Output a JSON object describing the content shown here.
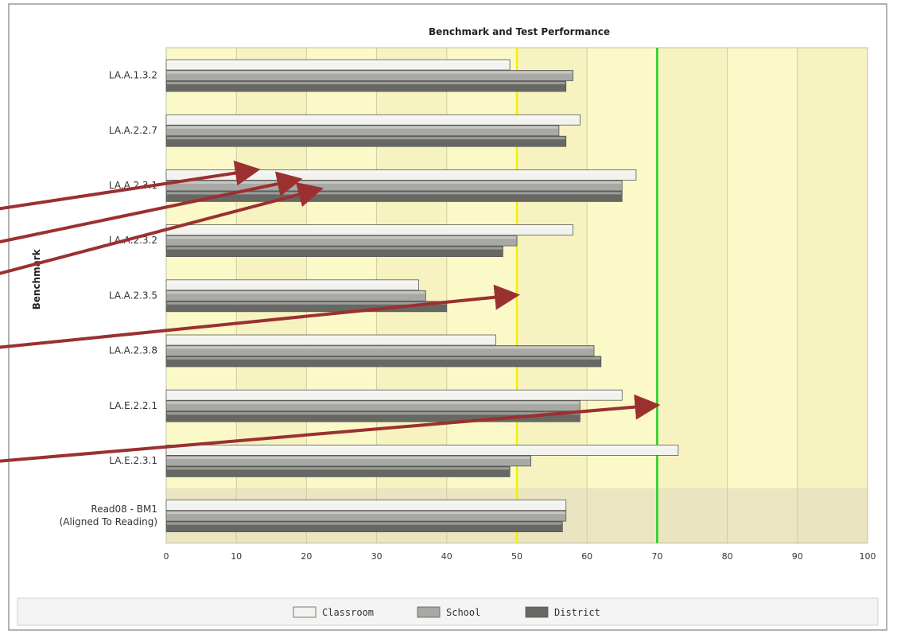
{
  "chart_data": {
    "type": "bar",
    "orientation": "horizontal",
    "title": "Benchmark and Test Performance",
    "ylabel": "Benchmark",
    "xlabel": "",
    "xlim": [
      0,
      100
    ],
    "xticks": [
      "0",
      "10",
      "20",
      "30",
      "40",
      "50",
      "60",
      "70",
      "80",
      "90",
      "100"
    ],
    "categories": [
      [
        "LA.A.1.3.2"
      ],
      [
        "LA.A.2.2.7"
      ],
      [
        "LA.A.2.3.1"
      ],
      [
        "LA.A.2.3.2"
      ],
      [
        "LA.A.2.3.5"
      ],
      [
        "LA.A.2.3.8"
      ],
      [
        "LA.E.2.2.1"
      ],
      [
        "LA.E.2.3.1"
      ],
      [
        "Read08 - BM1",
        "(Aligned To Reading)"
      ]
    ],
    "series": [
      {
        "name": "Classroom",
        "color": "#f2f2ee",
        "values": [
          49,
          59,
          67,
          58,
          36,
          47,
          65,
          73,
          57
        ]
      },
      {
        "name": "School",
        "color": "#a8a8a4",
        "values": [
          58,
          56,
          65,
          50,
          37,
          61,
          59,
          52,
          57
        ]
      },
      {
        "name": "District",
        "color": "#676764",
        "values": [
          57,
          57,
          65,
          48,
          40,
          62,
          59,
          49,
          56.5
        ]
      }
    ],
    "reference_lines": [
      {
        "value": 50,
        "color": "#f2f200"
      },
      {
        "value": 70,
        "color": "#22cc22"
      }
    ],
    "band_colors": {
      "primary": "#fbf9c8",
      "alternate": "#f6f3c0",
      "last_row": "#e9e3c0"
    },
    "grid": true,
    "legend": "bottom-center",
    "arrow_color": "#9b3030",
    "arrows_pointing_to": [
      {
        "category": "LA.A.2.3.1",
        "value": 13
      },
      {
        "category": "LA.A.2.3.1",
        "value": 19
      },
      {
        "category": "LA.A.2.3.1",
        "value": 22
      },
      {
        "category": "LA.A.2.3.5",
        "value": 50
      },
      {
        "category": "LA.E.2.2.1",
        "value": 70
      }
    ]
  }
}
